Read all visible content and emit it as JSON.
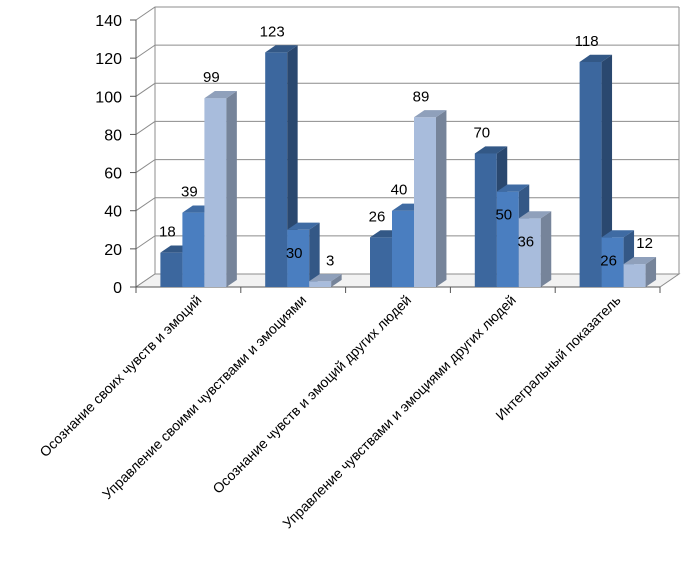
{
  "chart_data": {
    "type": "bar",
    "title": "",
    "xlabel": "",
    "ylabel": "",
    "ylim": [
      0,
      140
    ],
    "yticks": [
      0,
      20,
      40,
      60,
      80,
      100,
      120,
      140
    ],
    "grid": true,
    "legend": "none",
    "categories": [
      "Осознание своих чувств и эмоций",
      "Управление своими чувствами и эмоциями",
      "Осознание чувств и эмоций других людей",
      "Управление чувствами и эмоциями других людей",
      "Интегральный  показатель"
    ],
    "series": [
      {
        "values": [
          18,
          123,
          26,
          70,
          118
        ],
        "color": "#3C679E"
      },
      {
        "values": [
          39,
          30,
          40,
          50,
          26
        ],
        "color": "#4A7EC0"
      },
      {
        "values": [
          99,
          3,
          89,
          36,
          12
        ],
        "color": "#A8BCDC"
      }
    ]
  }
}
